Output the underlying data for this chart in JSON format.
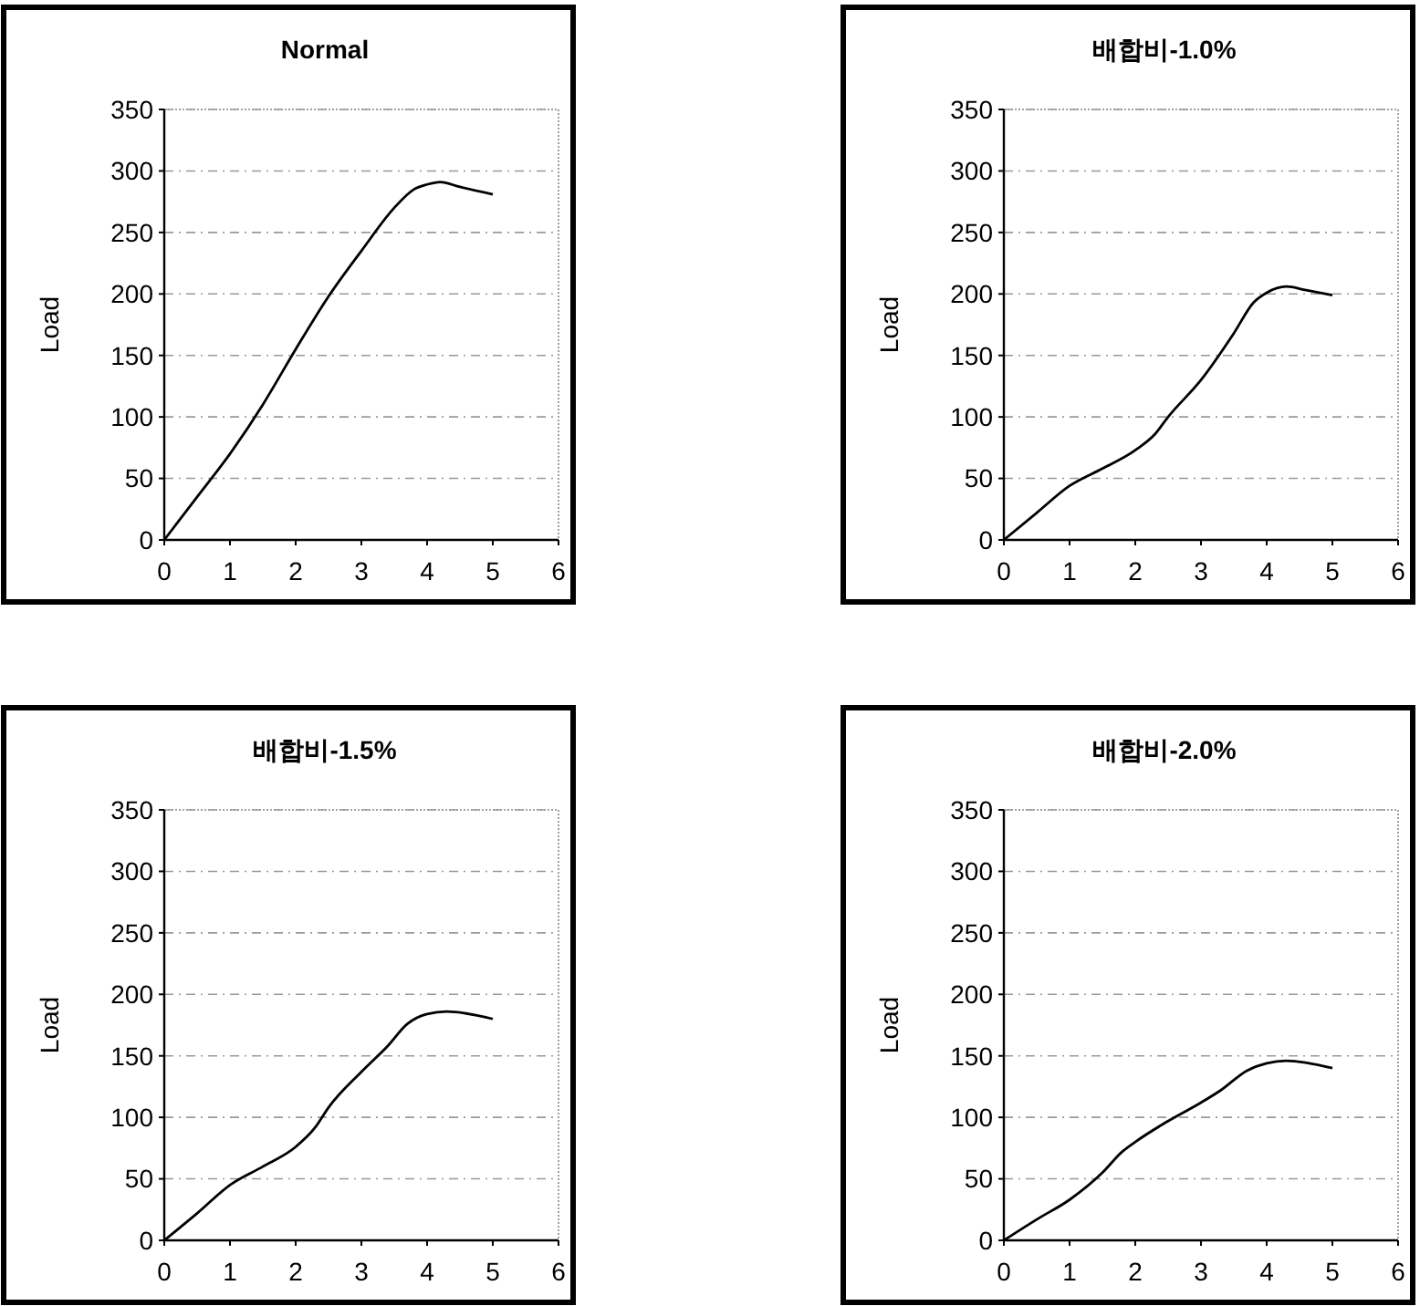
{
  "chart_data": [
    {
      "type": "line",
      "title": "Normal",
      "ylabel": "Load",
      "xlim": [
        0,
        6
      ],
      "xticks": [
        0,
        1,
        2,
        3,
        4,
        5,
        6
      ],
      "ylim": [
        0,
        350
      ],
      "yticks": [
        0,
        50,
        100,
        150,
        200,
        250,
        300,
        350
      ],
      "grid": "y",
      "series": [
        {
          "color": "#000000",
          "x": [
            0,
            0.5,
            1,
            1.5,
            2,
            2.5,
            3,
            3.5,
            3.8,
            4,
            4.2,
            4.5,
            5
          ],
          "values": [
            0,
            35,
            70,
            110,
            155,
            198,
            235,
            270,
            285,
            289,
            291,
            287,
            281
          ]
        }
      ]
    },
    {
      "type": "line",
      "title": "배합비-1.0%",
      "ylabel": "Load",
      "xlim": [
        0,
        6
      ],
      "xticks": [
        0,
        1,
        2,
        3,
        4,
        5,
        6
      ],
      "ylim": [
        0,
        350
      ],
      "yticks": [
        0,
        50,
        100,
        150,
        200,
        250,
        300,
        350
      ],
      "grid": "y",
      "series": [
        {
          "color": "#000000",
          "x": [
            0,
            0.5,
            1,
            1.5,
            2,
            2.3,
            2.5,
            3,
            3.5,
            3.8,
            4,
            4.3,
            4.6,
            5
          ],
          "values": [
            0,
            22,
            44,
            58,
            73,
            86,
            100,
            130,
            168,
            193,
            201,
            206,
            203,
            199
          ]
        }
      ]
    },
    {
      "type": "line",
      "title": "배합비-1.5%",
      "ylabel": "Load",
      "xlim": [
        0,
        6
      ],
      "xticks": [
        0,
        1,
        2,
        3,
        4,
        5,
        6
      ],
      "ylim": [
        0,
        350
      ],
      "yticks": [
        0,
        50,
        100,
        150,
        200,
        250,
        300,
        350
      ],
      "grid": "y",
      "series": [
        {
          "color": "#000000",
          "x": [
            0,
            0.5,
            1,
            1.5,
            2,
            2.3,
            2.5,
            3,
            3.4,
            3.7,
            4,
            4.3,
            5
          ],
          "values": [
            0,
            22,
            45,
            60,
            76,
            92,
            108,
            137,
            158,
            176,
            184,
            186,
            180
          ]
        }
      ]
    },
    {
      "type": "line",
      "title": "배합비-2.0%",
      "ylabel": "Load",
      "xlim": [
        0,
        6
      ],
      "xticks": [
        0,
        1,
        2,
        3,
        4,
        5,
        6
      ],
      "ylim": [
        0,
        350
      ],
      "yticks": [
        0,
        50,
        100,
        150,
        200,
        250,
        300,
        350
      ],
      "grid": "y",
      "series": [
        {
          "color": "#000000",
          "x": [
            0,
            0.5,
            1,
            1.5,
            1.8,
            2,
            2.5,
            3,
            3.3,
            3.7,
            4,
            4.3,
            5
          ],
          "values": [
            0,
            17,
            33,
            55,
            72,
            80,
            97,
            112,
            122,
            138,
            144,
            146,
            140
          ]
        }
      ]
    }
  ]
}
